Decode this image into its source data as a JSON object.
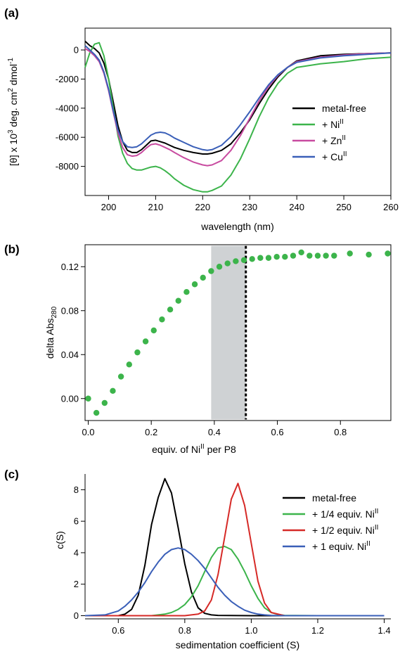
{
  "chart_data": [
    {
      "panel": "(a)",
      "type": "line",
      "xlabel": "wavelength (nm)",
      "ylabel": "[θ] x 10³ deg. cm² dmol⁻¹",
      "xlim": [
        195,
        260
      ],
      "ylim": [
        -10000,
        1500
      ],
      "xticks": [
        200,
        210,
        220,
        230,
        240,
        250,
        260
      ],
      "yticks": [
        0,
        -2000,
        -4000,
        -6000,
        -8000
      ],
      "legend_position": "right",
      "series": [
        {
          "name": "metal-free",
          "color": "#000000",
          "x": [
            195,
            196,
            197,
            198,
            199,
            200,
            201,
            202,
            203,
            204,
            205,
            206,
            207,
            208,
            209,
            210,
            211,
            212,
            213,
            214,
            216,
            218,
            220,
            221,
            222,
            224,
            226,
            228,
            230,
            232,
            234,
            236,
            238,
            240,
            245,
            250,
            255,
            260
          ],
          "y": [
            600,
            300,
            100,
            -200,
            -900,
            -2000,
            -3600,
            -5200,
            -6300,
            -6900,
            -7050,
            -7050,
            -6850,
            -6550,
            -6250,
            -6200,
            -6300,
            -6400,
            -6550,
            -6700,
            -6900,
            -7050,
            -7150,
            -7150,
            -7100,
            -6900,
            -6450,
            -5700,
            -4800,
            -3700,
            -2700,
            -1850,
            -1200,
            -750,
            -400,
            -300,
            -250,
            -200
          ]
        },
        {
          "name": "+ Ni^II",
          "color": "#3cb44b",
          "x": [
            195,
            196,
            197,
            198,
            199,
            200,
            201,
            202,
            203,
            204,
            205,
            206,
            207,
            208,
            209,
            210,
            211,
            212,
            213,
            214,
            216,
            218,
            220,
            221,
            222,
            224,
            226,
            228,
            230,
            232,
            234,
            236,
            238,
            240,
            245,
            250,
            255,
            260
          ],
          "y": [
            -1200,
            -200,
            400,
            500,
            -400,
            -2000,
            -4000,
            -5900,
            -7100,
            -7800,
            -8150,
            -8250,
            -8250,
            -8150,
            -8050,
            -8000,
            -8100,
            -8300,
            -8550,
            -8850,
            -9300,
            -9600,
            -9750,
            -9750,
            -9650,
            -9350,
            -8600,
            -7500,
            -6100,
            -4600,
            -3300,
            -2300,
            -1600,
            -1200,
            -950,
            -800,
            -600,
            -500
          ]
        },
        {
          "name": "+ Zn^II",
          "color": "#c84ba0",
          "x": [
            195,
            196,
            197,
            198,
            199,
            200,
            201,
            202,
            203,
            204,
            205,
            206,
            207,
            208,
            209,
            210,
            211,
            212,
            213,
            214,
            216,
            218,
            220,
            221,
            222,
            224,
            226,
            228,
            230,
            232,
            234,
            236,
            238,
            240,
            245,
            250,
            255,
            260
          ],
          "y": [
            100,
            -100,
            -400,
            -800,
            -1600,
            -2800,
            -4300,
            -5700,
            -6700,
            -7200,
            -7300,
            -7250,
            -7050,
            -6750,
            -6500,
            -6450,
            -6550,
            -6700,
            -6850,
            -7050,
            -7400,
            -7700,
            -7900,
            -7950,
            -7900,
            -7600,
            -6900,
            -5900,
            -4700,
            -3500,
            -2500,
            -1750,
            -1200,
            -800,
            -500,
            -350,
            -250,
            -200
          ]
        },
        {
          "name": "+ Cu^II",
          "color": "#3a5fb8",
          "x": [
            195,
            196,
            197,
            198,
            199,
            200,
            201,
            202,
            203,
            204,
            205,
            206,
            207,
            208,
            209,
            210,
            211,
            212,
            213,
            214,
            216,
            218,
            220,
            221,
            222,
            224,
            226,
            228,
            230,
            232,
            234,
            236,
            238,
            240,
            245,
            250,
            255,
            260
          ],
          "y": [
            300,
            0,
            -300,
            -700,
            -1500,
            -2700,
            -4200,
            -5500,
            -6300,
            -6650,
            -6700,
            -6650,
            -6450,
            -6150,
            -5850,
            -5700,
            -5650,
            -5700,
            -5850,
            -6050,
            -6350,
            -6650,
            -6850,
            -6900,
            -6850,
            -6550,
            -5950,
            -5150,
            -4250,
            -3300,
            -2400,
            -1700,
            -1200,
            -850,
            -550,
            -400,
            -300,
            -200
          ]
        }
      ]
    },
    {
      "panel": "(b)",
      "type": "scatter",
      "xlabel": "equiv. of Ni^II per P8",
      "ylabel": "delta Abs280",
      "xlim": [
        -0.01,
        0.96
      ],
      "ylim": [
        -0.02,
        0.14
      ],
      "xticks": [
        0.0,
        0.2,
        0.4,
        0.6,
        0.8
      ],
      "yticks": [
        0.0,
        0.04,
        0.08,
        0.12
      ],
      "shaded_region": [
        0.39,
        0.5
      ],
      "dashed_line_x": 0.5,
      "series": [
        {
          "color": "#3cb44b",
          "x": [
            0.0,
            0.026,
            0.052,
            0.078,
            0.104,
            0.13,
            0.156,
            0.182,
            0.208,
            0.234,
            0.26,
            0.286,
            0.312,
            0.338,
            0.364,
            0.39,
            0.416,
            0.442,
            0.468,
            0.494,
            0.52,
            0.546,
            0.572,
            0.598,
            0.624,
            0.65,
            0.676,
            0.702,
            0.728,
            0.754,
            0.78,
            0.83,
            0.89,
            0.95
          ],
          "y": [
            0.0,
            -0.013,
            -0.004,
            0.007,
            0.02,
            0.031,
            0.042,
            0.052,
            0.062,
            0.072,
            0.081,
            0.089,
            0.097,
            0.104,
            0.11,
            0.116,
            0.12,
            0.123,
            0.125,
            0.126,
            0.127,
            0.128,
            0.128,
            0.129,
            0.129,
            0.13,
            0.133,
            0.13,
            0.13,
            0.13,
            0.13,
            0.132,
            0.131,
            0.132
          ]
        }
      ]
    },
    {
      "panel": "(c)",
      "type": "line",
      "xlabel": "sedimentation coefficient (S)",
      "ylabel": "c(S)",
      "xlim": [
        0.5,
        1.42
      ],
      "ylim": [
        -0.2,
        9.0
      ],
      "xticks": [
        0.6,
        0.8,
        1.0,
        1.2,
        1.4
      ],
      "yticks": [
        0,
        2,
        4,
        6,
        8
      ],
      "legend_position": "top-right",
      "series": [
        {
          "name": "metal-free",
          "color": "#000000",
          "x": [
            0.5,
            0.6,
            0.62,
            0.64,
            0.66,
            0.68,
            0.7,
            0.72,
            0.74,
            0.76,
            0.78,
            0.8,
            0.82,
            0.84,
            0.86,
            0.88,
            0.9,
            1.0,
            1.4
          ],
          "y": [
            0,
            0,
            0.1,
            0.4,
            1.3,
            3.2,
            5.8,
            7.5,
            8.7,
            7.8,
            5.6,
            3.3,
            1.5,
            0.5,
            0.15,
            0.05,
            0.02,
            0,
            0
          ]
        },
        {
          "name": "+ 1/4 equiv. Ni^II",
          "color": "#3cb44b",
          "x": [
            0.5,
            0.7,
            0.74,
            0.76,
            0.78,
            0.8,
            0.82,
            0.84,
            0.86,
            0.88,
            0.9,
            0.92,
            0.94,
            0.96,
            0.98,
            1.0,
            1.02,
            1.04,
            1.06,
            1.08,
            1.1,
            1.2,
            1.4
          ],
          "y": [
            0,
            0,
            0.1,
            0.2,
            0.4,
            0.7,
            1.2,
            1.9,
            2.8,
            3.7,
            4.3,
            4.4,
            4.2,
            3.6,
            2.8,
            1.9,
            1.1,
            0.5,
            0.2,
            0.08,
            0.02,
            0,
            0
          ]
        },
        {
          "name": "+ 1/2 equiv. Ni^II",
          "color": "#d62a27",
          "x": [
            0.5,
            0.8,
            0.84,
            0.86,
            0.88,
            0.9,
            0.92,
            0.94,
            0.96,
            0.98,
            1.0,
            1.02,
            1.04,
            1.06,
            1.1,
            1.4
          ],
          "y": [
            0,
            0,
            0.1,
            0.3,
            1.0,
            2.6,
            5.0,
            7.4,
            8.4,
            7.0,
            4.6,
            2.2,
            0.8,
            0.2,
            0,
            0
          ]
        },
        {
          "name": "+ 1 equiv. Ni^II",
          "color": "#3a5fb8",
          "x": [
            0.5,
            0.56,
            0.6,
            0.62,
            0.64,
            0.66,
            0.68,
            0.7,
            0.72,
            0.74,
            0.76,
            0.78,
            0.8,
            0.82,
            0.84,
            0.86,
            0.88,
            0.9,
            0.92,
            0.94,
            0.96,
            0.98,
            1.0,
            1.02,
            1.04,
            1.06,
            1.1,
            1.4
          ],
          "y": [
            0,
            0.05,
            0.3,
            0.6,
            1.0,
            1.5,
            2.1,
            2.8,
            3.4,
            3.9,
            4.2,
            4.3,
            4.2,
            3.9,
            3.5,
            3.0,
            2.4,
            1.8,
            1.3,
            0.9,
            0.6,
            0.35,
            0.2,
            0.1,
            0.05,
            0.02,
            0,
            0
          ]
        }
      ]
    }
  ]
}
